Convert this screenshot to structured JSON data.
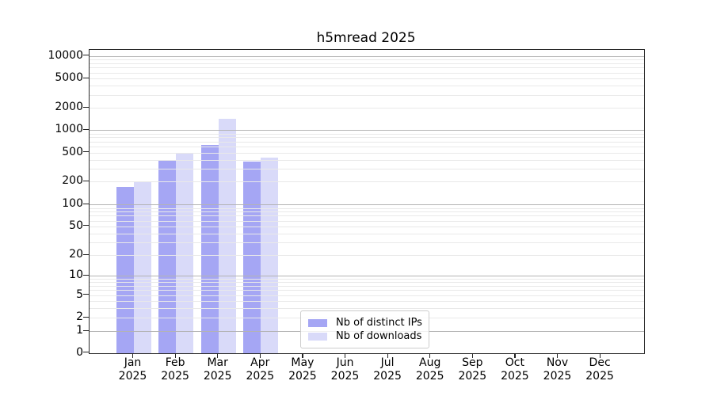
{
  "chart_data": {
    "type": "bar",
    "title": "h5mread 2025",
    "yscale": "symlog",
    "xlabel": "",
    "ylabel": "",
    "categories": [
      "Jan 2025",
      "Feb 2025",
      "Mar 2025",
      "Apr 2025",
      "May 2025",
      "Jun 2025",
      "Jul 2025",
      "Aug 2025",
      "Sep 2025",
      "Oct 2025",
      "Nov 2025",
      "Dec 2025"
    ],
    "series": [
      {
        "name": "Nb of distinct IPs",
        "color": "#a5a6f4",
        "values": [
          170,
          390,
          630,
          380,
          0,
          0,
          0,
          0,
          0,
          0,
          0,
          0
        ]
      },
      {
        "name": "Nb of downloads",
        "color": "#d9daf9",
        "values": [
          195,
          500,
          1420,
          430,
          0,
          0,
          0,
          0,
          0,
          0,
          0,
          0
        ]
      }
    ],
    "yticks": [
      0,
      1,
      2,
      5,
      10,
      20,
      50,
      100,
      200,
      500,
      1000,
      2000,
      5000,
      10000
    ],
    "ylim": [
      0,
      10000
    ],
    "grid": "horizontal, major and minor",
    "legend_position": "lower center",
    "colors": {
      "grid_major": "#b3b3b3",
      "grid_minor": "#e9e9e9",
      "spine": "#2a2a2a"
    }
  }
}
